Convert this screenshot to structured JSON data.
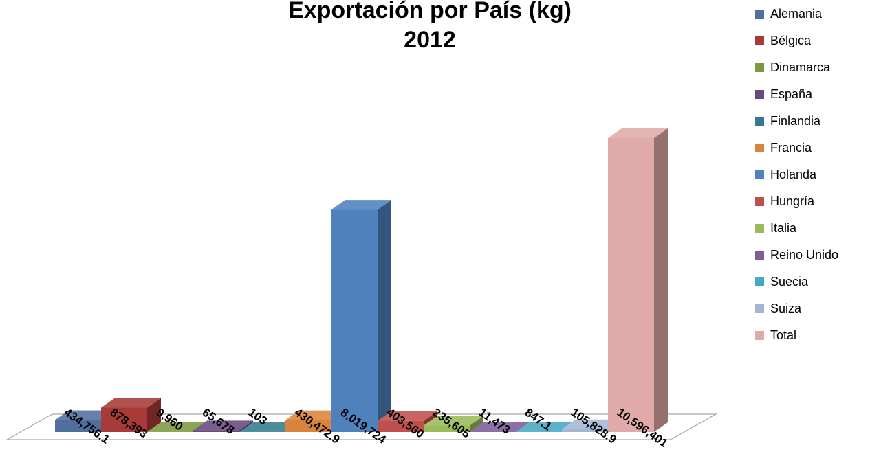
{
  "chart_data": {
    "type": "bar",
    "title": "Exportación por País (kg)",
    "subtitle": "2012",
    "categories": [
      "Alemania",
      "Bélgica",
      "Dinamarca",
      "España",
      "Finlandia",
      "Francia",
      "Holanda",
      "Hungría",
      "Italia",
      "Reino Unido",
      "Suecia",
      "Suiza",
      "Total"
    ],
    "values": [
      434756.1,
      878393,
      9960,
      65678,
      103,
      430472.9,
      8019724,
      403560,
      235605,
      11473,
      847.1,
      105828.9,
      10596401
    ],
    "data_labels": [
      "434,756.1",
      "878,393",
      "9,960",
      "65,678",
      "103",
      "430,472.9",
      "8,019,724",
      "403,560",
      "235,605",
      "11,473",
      "847.1",
      "105,828.9",
      "10,596,401"
    ],
    "colors": [
      "#4F6F9F",
      "#A83A38",
      "#7E9A3C",
      "#67487F",
      "#327C8E",
      "#D9843C",
      "#4F81BD",
      "#C0504D",
      "#9BBB59",
      "#7D5E9A",
      "#45A9C3",
      "#A5B6D3",
      "#E0AAA8"
    ],
    "legend": [
      "Alemania",
      "Bélgica",
      "Dinamarca",
      "España",
      "Finlandia",
      "Francia",
      "Holanda",
      "Hungría",
      "Italia",
      "Reino Unido",
      "Suecia",
      "Suiza",
      "Total"
    ],
    "legend_position": "right",
    "grid": false,
    "style": "3d-column"
  }
}
